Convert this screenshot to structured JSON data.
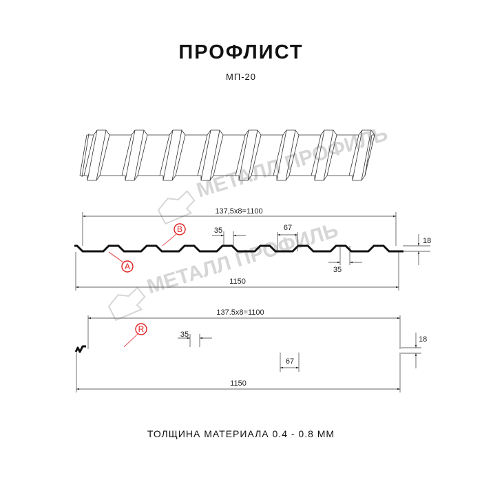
{
  "header": {
    "title": "ПРОФЛИСТ",
    "subtitle": "МП-20"
  },
  "watermark": {
    "text": "МЕТАЛЛ ПРОФИЛЬ"
  },
  "profile_top": {
    "span_label": "137,5x8=1100",
    "total_label": "1150",
    "rib_top_label": "35",
    "trough_label": "67",
    "rib_bottom_label": "35",
    "height_label": "18",
    "marker_b": "B",
    "marker_a": "A"
  },
  "profile_bottom": {
    "span_label": "137.5x8=1100",
    "total_label": "1150",
    "rib_top_label": "35",
    "trough_label": "67",
    "height_label": "18",
    "marker_r": "R"
  },
  "footer": {
    "thickness": "ТОЛЩИНА МАТЕРИАЛА 0.4 - 0.8 ММ"
  },
  "colors": {
    "profile": "#111111",
    "marker": "#e02020",
    "watermark": "#d6d6d6"
  }
}
